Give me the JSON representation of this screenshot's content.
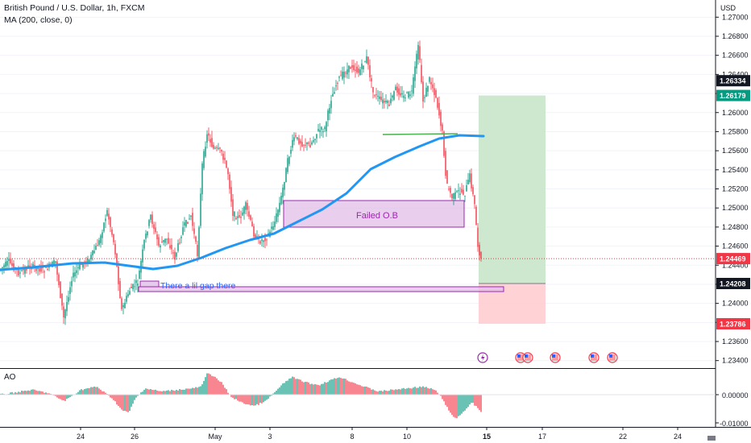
{
  "legend": {
    "symbol": "British Pound / U.S. Dollar, 1h, FXCM",
    "indicator": "MA (200, close, 0)"
  },
  "currency": "USD",
  "price_axis": {
    "ticks": [
      "1.27000",
      "1.26800",
      "1.26600",
      "1.26400",
      "1.26200",
      "1.26000",
      "1.25800",
      "1.25600",
      "1.25400",
      "1.25200",
      "1.25000",
      "1.24800",
      "1.24600",
      "1.24400",
      "1.24200",
      "1.24000",
      "1.23800",
      "1.23600",
      "1.23400"
    ],
    "badges": [
      {
        "label": "1.26334",
        "price": 1.26334,
        "bg": "#131722",
        "fg": "#ffffff"
      },
      {
        "label": "1.26179",
        "price": 1.26179,
        "bg": "#089981",
        "fg": "#ffffff"
      },
      {
        "label": "1.24469",
        "price": 1.24469,
        "bg": "#f23645",
        "fg": "#ffffff"
      },
      {
        "label": "1.24208",
        "price": 1.24208,
        "bg": "#131722",
        "fg": "#ffffff"
      },
      {
        "label": "1.23786",
        "price": 1.23786,
        "bg": "#f23645",
        "fg": "#ffffff"
      }
    ]
  },
  "time_axis": {
    "labels": [
      "24",
      "26",
      "May",
      "3",
      "8",
      "10",
      "15",
      "17",
      "22",
      "24"
    ],
    "highlighted": "15"
  },
  "annotations": {
    "failed_ob": "Failed O.B",
    "gap_note": "There a  lil gap there",
    "trade": {
      "target": 1.26179,
      "entry": 1.24208,
      "stop": 1.23786
    }
  },
  "oscillator": {
    "name": "AO",
    "ticks": [
      "0.00000",
      "-0.01000"
    ]
  },
  "colors": {
    "up": "#089981",
    "down": "#f23645",
    "ma": "#2196f3",
    "ob_fill": "#e1bee7",
    "ob_border": "#9c27b0",
    "profit": "#c8e6c9",
    "loss": "#ffcdd2",
    "support": "#4caf50"
  },
  "icons": [
    "lightning-event-icon",
    "us-flag-event-icon",
    "us-flag-event-icon",
    "us-flag-event-icon",
    "us-flag-event-icon"
  ]
}
